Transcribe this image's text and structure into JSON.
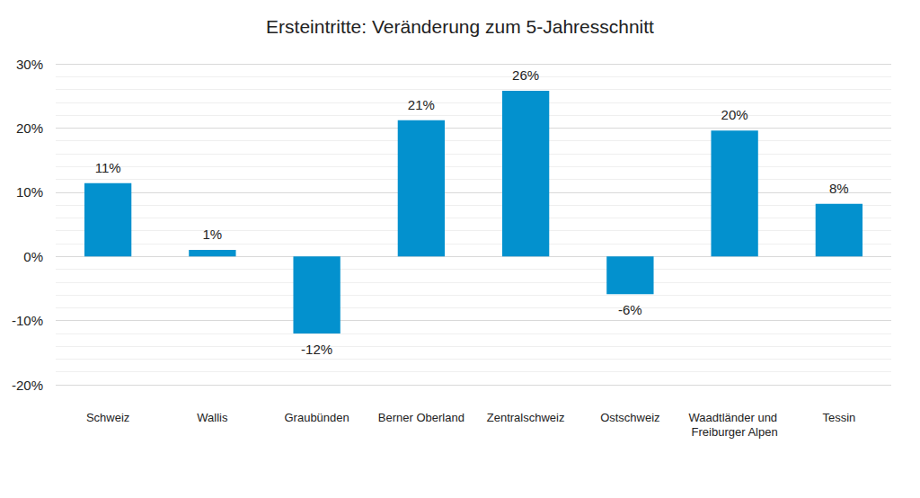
{
  "chart_data": {
    "type": "bar",
    "title": "Ersteintritte: Veränderung zum 5-Jahresschnitt",
    "categories": [
      "Schweiz",
      "Wallis",
      "Graubünden",
      "Berner Oberland",
      "Zentralschweiz",
      "Ostschweiz",
      "Waadtländer und Freiburger Alpen",
      "Tessin"
    ],
    "values": [
      11.4,
      1.0,
      -12.0,
      21.2,
      25.8,
      -5.9,
      19.6,
      8.2
    ],
    "value_labels": [
      "11%",
      "1%",
      "-12%",
      "21%",
      "26%",
      "-6%",
      "20%",
      "8%"
    ],
    "color": "#0391ce",
    "ylim": [
      -20,
      30
    ],
    "yticks": [
      {
        "value": -20,
        "label": "-20%"
      },
      {
        "value": -10,
        "label": "-10%"
      },
      {
        "value": 0,
        "label": "0%"
      },
      {
        "value": 10,
        "label": "10%"
      },
      {
        "value": 20,
        "label": "20%"
      },
      {
        "value": 30,
        "label": "30%"
      }
    ],
    "grid": true,
    "data_labels": true
  }
}
